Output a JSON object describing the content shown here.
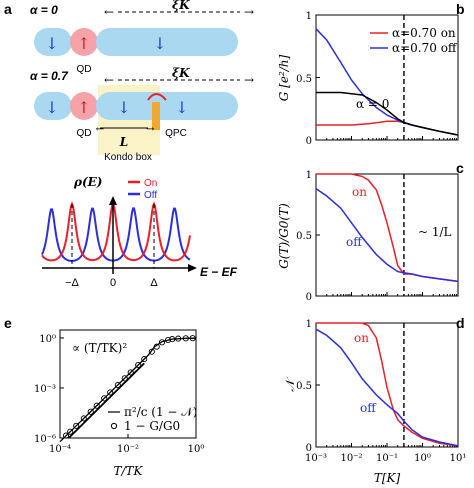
{
  "panel_labels": {
    "a": "a",
    "b": "b",
    "c": "c",
    "d": "d",
    "e": "e"
  },
  "schematic": {
    "alpha0_label": "α = 0",
    "alpha07_label": "α = 0.7",
    "xi_label": "ξK",
    "qd_label": "QD",
    "qpc_label": "QPC",
    "L_label": "L",
    "kondo_box_label": "Kondo box",
    "rho_label": "ρ(E)",
    "axis_label": "E − EF",
    "tick_labels": [
      "−Δ",
      "0",
      "Δ"
    ],
    "legend_on": "On",
    "legend_off": "Off",
    "colors": {
      "on": "#e8202a",
      "off": "#2a2ee0",
      "chain": "#a9d8f0",
      "dot": "#f5a3a8",
      "box": "#fbf3c8",
      "qpc": "#f0a830"
    }
  },
  "chart_data": [
    {
      "panel": "b",
      "type": "line",
      "ylabel": "G [e²/h]",
      "xscale": "log",
      "xlim": [
        0.001,
        10
      ],
      "ylim": [
        0,
        1
      ],
      "yticks": [
        "0",
        "0.5",
        "1"
      ],
      "legend": [
        {
          "label": "α=0.70 on",
          "color": "#e8202a"
        },
        {
          "label": "α=0.70 off",
          "color": "#2a2ee0"
        }
      ],
      "annotation": "α = 0",
      "vline_x": 0.3,
      "series": [
        {
          "name": "α=0.70 on",
          "color": "#e8202a",
          "x": [
            0.001,
            0.01,
            0.03,
            0.1,
            0.2,
            0.3,
            0.5,
            1,
            3,
            10
          ],
          "y": [
            0.12,
            0.12,
            0.13,
            0.15,
            0.15,
            0.14,
            0.12,
            0.1,
            0.07,
            0.04
          ]
        },
        {
          "name": "α=0.70 off",
          "color": "#2a2ee0",
          "x": [
            0.001,
            0.002,
            0.005,
            0.01,
            0.02,
            0.05,
            0.1,
            0.2,
            0.3,
            0.5,
            1,
            3,
            10
          ],
          "y": [
            0.89,
            0.8,
            0.62,
            0.48,
            0.37,
            0.26,
            0.2,
            0.16,
            0.14,
            0.12,
            0.1,
            0.07,
            0.04
          ]
        },
        {
          "name": "α = 0",
          "color": "#000000",
          "x": [
            0.001,
            0.005,
            0.01,
            0.02,
            0.05,
            0.1,
            0.2,
            0.3,
            0.5,
            1,
            3,
            10
          ],
          "y": [
            0.38,
            0.38,
            0.37,
            0.36,
            0.3,
            0.24,
            0.17,
            0.14,
            0.12,
            0.1,
            0.07,
            0.04
          ]
        }
      ]
    },
    {
      "panel": "c",
      "type": "line",
      "ylabel": "G(T)/G0(T)",
      "xscale": "log",
      "xlim": [
        0.001,
        10
      ],
      "ylim": [
        0,
        1
      ],
      "yticks": [
        "0",
        "0.5",
        "1"
      ],
      "annotations": {
        "on": "on",
        "off": "off",
        "scale": "~ 1/L"
      },
      "vline_x": 0.3,
      "series": [
        {
          "name": "on",
          "color": "#e8202a",
          "x": [
            0.001,
            0.005,
            0.01,
            0.02,
            0.03,
            0.05,
            0.07,
            0.1,
            0.15,
            0.2,
            0.3,
            0.5,
            1,
            3,
            10
          ],
          "y": [
            1.0,
            1.0,
            1.0,
            0.98,
            0.95,
            0.87,
            0.75,
            0.6,
            0.4,
            0.25,
            0.18,
            0.18,
            0.16,
            0.14,
            0.12
          ]
        },
        {
          "name": "off",
          "color": "#2a2ee0",
          "x": [
            0.001,
            0.002,
            0.005,
            0.01,
            0.02,
            0.05,
            0.1,
            0.2,
            0.3,
            0.5,
            1,
            3,
            10
          ],
          "y": [
            0.88,
            0.82,
            0.72,
            0.6,
            0.48,
            0.34,
            0.26,
            0.2,
            0.19,
            0.18,
            0.16,
            0.14,
            0.12
          ]
        }
      ]
    },
    {
      "panel": "d",
      "type": "line",
      "ylabel": "𝒩",
      "xlabel": "T[K]",
      "xscale": "log",
      "xlim": [
        0.001,
        10
      ],
      "ylim": [
        0,
        1
      ],
      "xticks": [
        "10⁻³",
        "10⁻²",
        "10⁻¹",
        "10⁰",
        "10¹"
      ],
      "yticks": [
        "0",
        "0.5",
        "1"
      ],
      "annotations": {
        "on": "on",
        "off": "off"
      },
      "vline_x": 0.3,
      "series": [
        {
          "name": "on",
          "color": "#e8202a",
          "x": [
            0.001,
            0.01,
            0.02,
            0.03,
            0.05,
            0.07,
            0.1,
            0.15,
            0.2,
            0.3,
            0.5,
            1,
            3,
            10
          ],
          "y": [
            1.0,
            1.0,
            1.0,
            0.98,
            0.88,
            0.7,
            0.48,
            0.3,
            0.22,
            0.17,
            0.12,
            0.07,
            0.03,
            0.01
          ]
        },
        {
          "name": "off",
          "color": "#2a2ee0",
          "x": [
            0.001,
            0.002,
            0.005,
            0.01,
            0.02,
            0.05,
            0.1,
            0.2,
            0.3,
            0.5,
            1,
            3,
            10
          ],
          "y": [
            0.95,
            0.9,
            0.8,
            0.68,
            0.55,
            0.42,
            0.34,
            0.27,
            0.21,
            0.14,
            0.08,
            0.04,
            0.01
          ]
        }
      ]
    },
    {
      "panel": "e",
      "type": "line",
      "xlabel": "T/TK",
      "xscale": "log",
      "yscale": "log",
      "xlim": [
        0.0001,
        1
      ],
      "ylim": [
        1e-06,
        3
      ],
      "xticks": [
        "10⁻⁴",
        "10⁻²",
        "10⁰"
      ],
      "yticks": [
        "10⁻⁶",
        "10⁻³",
        "10⁰"
      ],
      "annotation": "∝ (T/TK)²",
      "legend": [
        {
          "label": "π²/c (1 − 𝒩)",
          "marker": "line"
        },
        {
          "label": "1 − G/G0",
          "marker": "circle"
        }
      ],
      "series": [
        {
          "name": "π²/c (1 − 𝒩)",
          "color": "#000000",
          "x": [
            0.0001,
            0.0003,
            0.001,
            0.003,
            0.01,
            0.02,
            0.04,
            0.06,
            0.1,
            0.2,
            0.5,
            1
          ],
          "y": [
            6e-07,
            5.4e-06,
            6e-05,
            0.00054,
            0.006,
            0.024,
            0.096,
            0.3,
            0.6,
            0.85,
            0.95,
            0.97
          ]
        },
        {
          "name": "1 − G/G0",
          "color": "#000000",
          "x": [
            0.00015,
            0.0002,
            0.0003,
            0.0005,
            0.0008,
            0.0012,
            0.002,
            0.003,
            0.005,
            0.008,
            0.012,
            0.02,
            0.03,
            0.05,
            0.07,
            0.1,
            0.15,
            0.2,
            0.3,
            0.5,
            0.8
          ],
          "y": [
            1.4e-06,
            2.4e-06,
            5.4e-06,
            1.5e-05,
            3.8e-05,
            8.6e-05,
            0.00024,
            0.00054,
            0.0015,
            0.0038,
            0.0086,
            0.024,
            0.054,
            0.15,
            0.3,
            0.55,
            0.75,
            0.85,
            0.92,
            0.95,
            0.97
          ]
        },
        {
          "name": "∝ (T/TK)²",
          "color": "#000000",
          "x": [
            0.00018,
            0.03
          ],
          "y": [
            1e-06,
            0.03
          ]
        }
      ]
    }
  ]
}
